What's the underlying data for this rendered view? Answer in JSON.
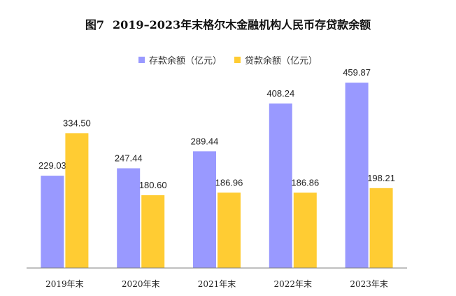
{
  "chart_data": {
    "type": "bar",
    "figure_label": "图7",
    "title": "2019–2023年末格尔木金融机构人民币存贷款余额",
    "categories": [
      "2019年末",
      "2020年末",
      "2021年末",
      "2022年末",
      "2023年末"
    ],
    "series": [
      {
        "name": "存款余额（亿元）",
        "color": "#9999ff",
        "values": [
          229.03,
          247.44,
          289.44,
          408.24,
          459.87
        ],
        "labels": [
          "229.03",
          "247.44",
          "289.44",
          "408.24",
          "459.87"
        ]
      },
      {
        "name": "贷款余额（亿元）",
        "color": "#ffcc33",
        "values": [
          334.5,
          180.6,
          186.96,
          186.86,
          198.21
        ],
        "labels": [
          "334.50",
          "180.60",
          "186.96",
          "186.86",
          "198.21"
        ]
      }
    ],
    "ylim": [
      0,
      500
    ],
    "grid": false,
    "legend_position": "top-center",
    "xlabel": "",
    "ylabel": ""
  }
}
